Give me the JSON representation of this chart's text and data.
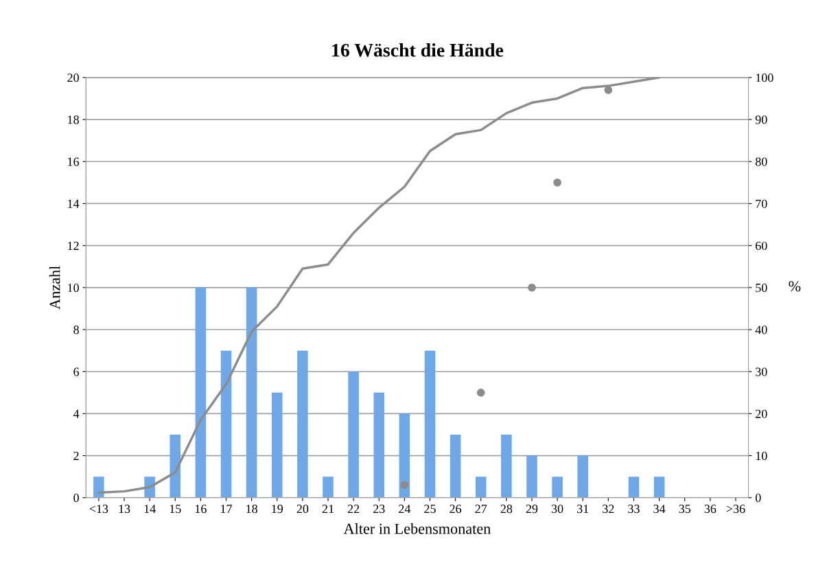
{
  "chart_data": {
    "type": "bar",
    "title": "16 Wäscht die Hände",
    "xlabel": "Alter in Lebensmonaten",
    "ylabel": "Anzahl",
    "y2label": "%",
    "categories": [
      "<13",
      "13",
      "14",
      "15",
      "16",
      "17",
      "18",
      "19",
      "20",
      "21",
      "22",
      "23",
      "24",
      "25",
      "26",
      "27",
      "28",
      "29",
      "30",
      "31",
      "32",
      "33",
      "34",
      "35",
      "36",
      ">36"
    ],
    "series": [
      {
        "color": "#6fa8e8",
        "values": [
          1,
          0,
          1,
          3,
          10,
          7,
          10,
          5,
          7,
          1,
          6,
          5,
          4,
          7,
          3,
          1,
          3,
          2,
          1,
          2,
          0,
          1,
          1,
          0,
          0,
          0
        ]
      },
      {
        "type": "line",
        "axis": "y2",
        "marker": "none",
        "color": "#8c8c8c",
        "values": [
          1.2,
          1.5,
          2.5,
          6,
          18.5,
          27,
          39.5,
          45.5,
          54.5,
          55.5,
          63,
          69,
          74,
          82.5,
          86.5,
          87.5,
          91.5,
          94,
          95,
          97.5,
          98,
          99,
          100,
          null,
          null,
          null
        ]
      },
      {
        "type": "scatter",
        "axis": "y2",
        "marker": "circle",
        "color": "#8c8c8c",
        "x": [
          "24",
          "27",
          "29",
          "30",
          "32"
        ],
        "values": [
          3,
          25,
          50,
          75,
          97
        ]
      }
    ],
    "ylim": [
      0,
      20
    ],
    "yticks": [
      0,
      2,
      4,
      6,
      8,
      10,
      12,
      14,
      16,
      18,
      20
    ],
    "y2lim": [
      0,
      100
    ],
    "y2ticks": [
      0,
      10,
      20,
      30,
      40,
      50,
      60,
      70,
      80,
      90,
      100
    ],
    "grid": "y",
    "legend": false
  }
}
